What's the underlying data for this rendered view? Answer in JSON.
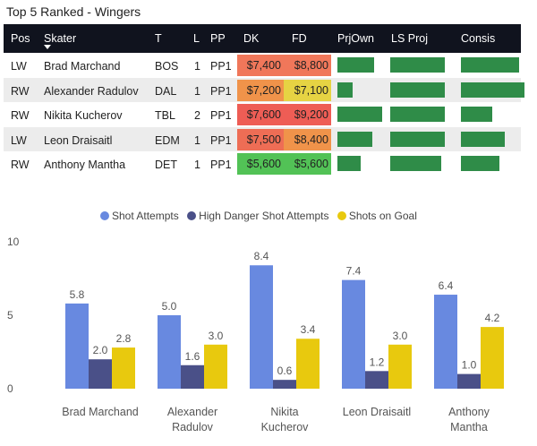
{
  "title": "Top 5 Ranked - Wingers",
  "columns": [
    "Pos",
    "Skater",
    "T",
    "L",
    "PP",
    "DK",
    "FD",
    "PrjOwn",
    "LS Proj",
    "Consis"
  ],
  "rows": [
    {
      "pos": "LW",
      "skater": "Brad Marchand",
      "team": "BOS",
      "line": "1",
      "pp": "PP1",
      "dk": "$7,400",
      "fd": "$8,800",
      "dk_color": "#f0775a",
      "fd_color": "#f0775a",
      "prjown": 0.75,
      "lsproj": 0.83,
      "consis": 0.9
    },
    {
      "pos": "RW",
      "skater": "Alexander Radulov",
      "team": "DAL",
      "line": "1",
      "pp": "PP1",
      "dk": "$7,200",
      "fd": "$7,100",
      "dk_color": "#f0934a",
      "fd_color": "#e6d343",
      "prjown": 0.3,
      "lsproj": 0.83,
      "consis": 0.98
    },
    {
      "pos": "RW",
      "skater": "Nikita Kucherov",
      "team": "TBL",
      "line": "2",
      "pp": "PP1",
      "dk": "$7,600",
      "fd": "$9,200",
      "dk_color": "#ee5d55",
      "fd_color": "#ee5d55",
      "prjown": 0.9,
      "lsproj": 0.83,
      "consis": 0.49
    },
    {
      "pos": "LW",
      "skater": "Leon Draisaitl",
      "team": "EDM",
      "line": "1",
      "pp": "PP1",
      "dk": "$7,500",
      "fd": "$8,400",
      "dk_color": "#ee6d55",
      "fd_color": "#f0934a",
      "prjown": 0.7,
      "lsproj": 0.83,
      "consis": 0.68
    },
    {
      "pos": "RW",
      "skater": "Anthony Mantha",
      "team": "DET",
      "line": "1",
      "pp": "PP1",
      "dk": "$5,600",
      "fd": "$5,600",
      "dk_color": "#52c256",
      "fd_color": "#52c256",
      "prjown": 0.47,
      "lsproj": 0.77,
      "consis": 0.6
    }
  ],
  "colors": {
    "prjown_bar": "#2f8c48",
    "header_bg": "#10131e"
  },
  "chart_data": {
    "type": "bar",
    "categories": [
      [
        "Brad Marchand"
      ],
      [
        "Alexander",
        "Radulov"
      ],
      [
        "Nikita",
        "Kucherov"
      ],
      [
        "Leon Draisaitl"
      ],
      [
        "Anthony",
        "Mantha"
      ]
    ],
    "series": [
      {
        "name": "Shot Attempts",
        "color": "#6889e0",
        "values": [
          5.8,
          5.0,
          8.4,
          7.4,
          6.4
        ]
      },
      {
        "name": "High Danger Shot Attempts",
        "color": "#4a5088",
        "values": [
          2.0,
          1.6,
          0.6,
          1.2,
          1.0
        ]
      },
      {
        "name": "Shots on Goal",
        "color": "#e8c90e",
        "values": [
          2.8,
          3.0,
          3.4,
          3.0,
          4.2
        ]
      }
    ],
    "ylim": [
      0,
      10
    ],
    "yticks": [
      0,
      5,
      10
    ],
    "legend_position": "top-center"
  }
}
